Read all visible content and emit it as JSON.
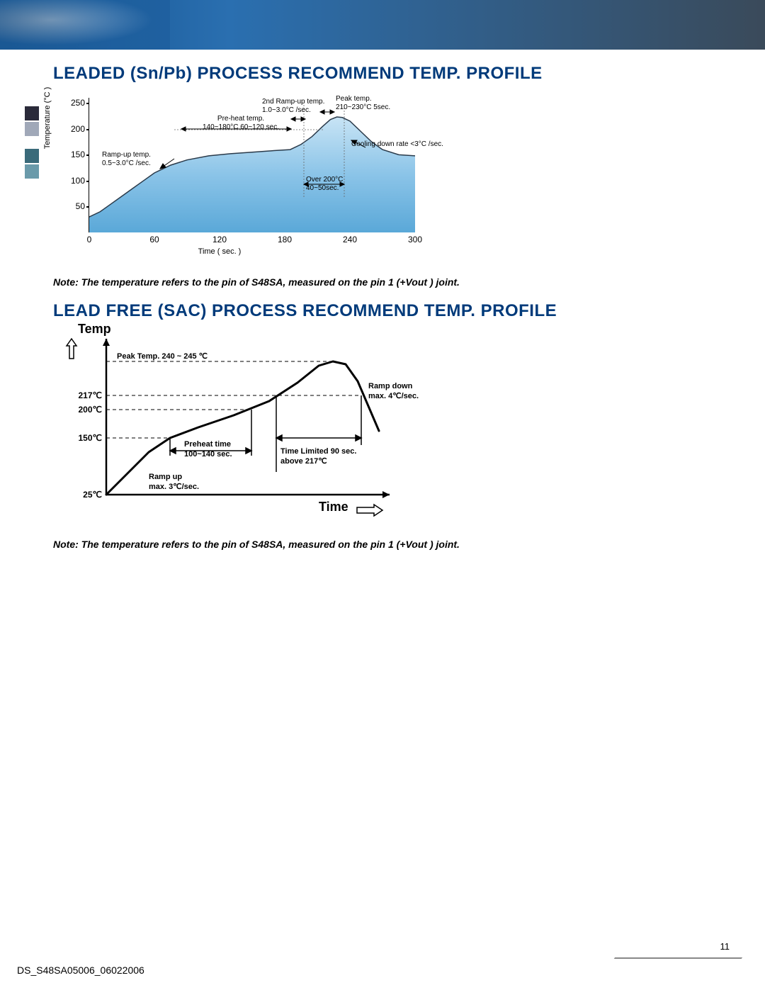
{
  "header": {
    "banner_gradient": [
      "#0a3a6a",
      "#1e5f9e",
      "#2a6fb0",
      "#3a4a5a"
    ]
  },
  "heading1": "LEADED (Sn/Pb) PROCESS RECOMMEND TEMP. PROFILE",
  "heading2": "LEAD FREE (SAC) PROCESS RECOMMEND TEMP. PROFILE",
  "note_text": "Note: The temperature refers to the pin of S48SA, measured on the pin 1 (+Vout ) joint.",
  "page_number": "11",
  "doc_id": "DS_S48SA05006_06022006",
  "chart1": {
    "type": "area",
    "title": "",
    "xlabel": "Time ( sec. )",
    "ylabel": "Temperature (°C )",
    "xlim": [
      0,
      300
    ],
    "ylim": [
      0,
      260
    ],
    "xticks": [
      0,
      60,
      120,
      180,
      240,
      300
    ],
    "yticks": [
      50,
      100,
      150,
      200,
      250
    ],
    "fill_gradient": [
      "#c8e4f5",
      "#8bc4e8",
      "#5aa8d8"
    ],
    "line_color": "#2a3a4a",
    "data": [
      [
        0,
        30
      ],
      [
        10,
        40
      ],
      [
        20,
        55
      ],
      [
        30,
        70
      ],
      [
        40,
        85
      ],
      [
        50,
        100
      ],
      [
        60,
        115
      ],
      [
        75,
        130
      ],
      [
        90,
        140
      ],
      [
        110,
        148
      ],
      [
        130,
        152
      ],
      [
        150,
        155
      ],
      [
        170,
        158
      ],
      [
        185,
        160
      ],
      [
        195,
        170
      ],
      [
        205,
        185
      ],
      [
        215,
        205
      ],
      [
        222,
        218
      ],
      [
        228,
        223
      ],
      [
        233,
        222
      ],
      [
        240,
        215
      ],
      [
        250,
        195
      ],
      [
        260,
        175
      ],
      [
        270,
        160
      ],
      [
        285,
        150
      ],
      [
        300,
        148
      ]
    ],
    "annotations": {
      "ramp_up": "Ramp-up temp.\n0.5~3.0°C /sec.",
      "preheat": "Pre-heat temp.\n140~180°C 60~120 sec.",
      "second_ramp": "2nd Ramp-up temp.\n1.0~3.0°C /sec.",
      "peak": "Peak temp.\n210~230°C 5sec.",
      "over200": "Over 200°C\n40~50sec.",
      "cooling": "Cooling down rate <3°C /sec."
    }
  },
  "chart2": {
    "type": "line",
    "temp_axis_title": "Temp",
    "time_axis_title": "Time",
    "ylabels": [
      "25℃",
      "150℃",
      "200℃",
      "217℃"
    ],
    "ypositions": [
      220,
      140,
      100,
      80
    ],
    "line_color": "#000000",
    "line_width": 3,
    "dash_color": "#000000",
    "data": [
      [
        0,
        220
      ],
      [
        30,
        190
      ],
      [
        60,
        160
      ],
      [
        90,
        140
      ],
      [
        130,
        125
      ],
      [
        180,
        108
      ],
      [
        230,
        88
      ],
      [
        270,
        62
      ],
      [
        300,
        38
      ],
      [
        320,
        32
      ],
      [
        338,
        36
      ],
      [
        355,
        60
      ],
      [
        370,
        95
      ],
      [
        385,
        130
      ]
    ],
    "annotations": {
      "peak": "Peak Temp. 240 ~ 245 ℃",
      "preheat": "Preheat time\n100~140 sec.",
      "ramp_up": "Ramp up\nmax. 3℃/sec.",
      "time_limited": "Time Limited 90 sec.\nabove 217℃",
      "ramp_down": "Ramp down\nmax. 4℃/sec."
    }
  }
}
